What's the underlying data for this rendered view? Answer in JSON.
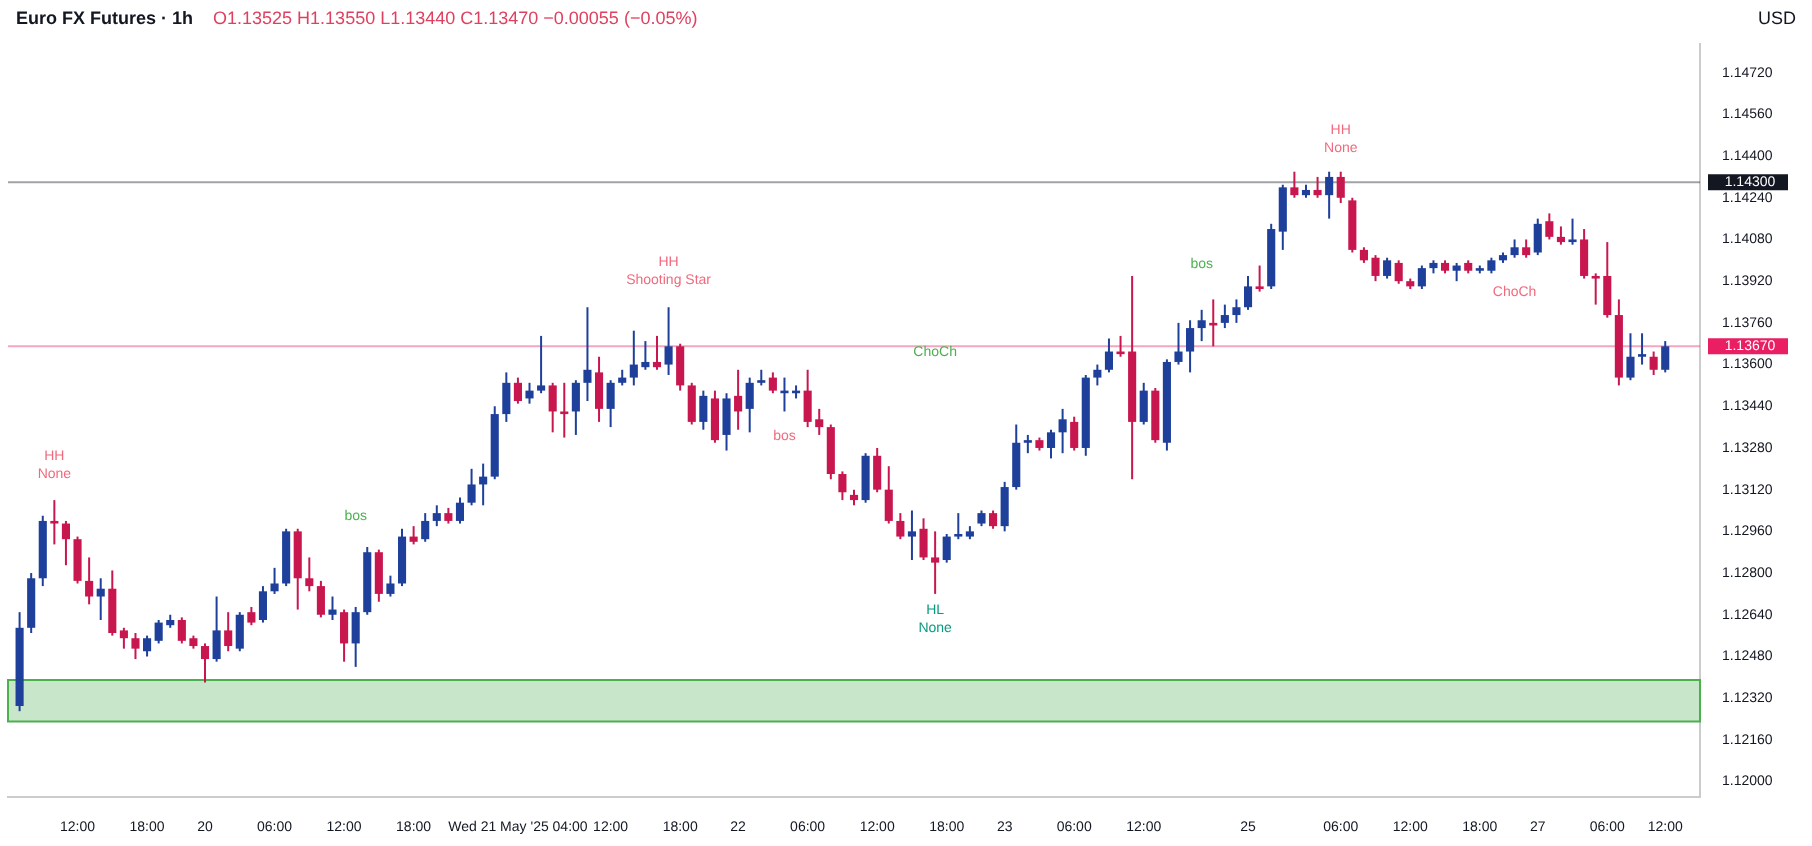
{
  "chart_data": {
    "type": "candlestick",
    "title": "Euro FX Futures · 1h",
    "annotations": [
      "O1.13525 H1.13550 L1.13440 C1.13470 −0.00055 (−0.05%)",
      "USD",
      "HH",
      "None",
      "HH",
      "Shooting Star",
      "HL",
      "None",
      "HH",
      "None",
      "bos",
      "bos",
      "bos",
      "ChoCh",
      "ChoCh"
    ],
    "categories": [
      null,
      null,
      null,
      null,
      null,
      "12:00",
      null,
      null,
      null,
      null,
      null,
      "18:00",
      null,
      null,
      null,
      null,
      "20",
      null,
      null,
      null,
      null,
      null,
      "06:00",
      null,
      null,
      null,
      null,
      null,
      "12:00",
      null,
      null,
      null,
      null,
      null,
      "18:00",
      null,
      null,
      null,
      null,
      null,
      null,
      null,
      null,
      "Wed 21 May '25 04:00",
      null,
      null,
      null,
      null,
      null,
      null,
      null,
      "12:00",
      null,
      null,
      null,
      null,
      null,
      "18:00",
      null,
      null,
      null,
      null,
      "22",
      null,
      null,
      null,
      null,
      null,
      "06:00",
      null,
      null,
      null,
      null,
      null,
      "12:00",
      null,
      null,
      null,
      null,
      null,
      "18:00",
      null,
      null,
      null,
      null,
      "23",
      null,
      null,
      null,
      null,
      null,
      "06:00",
      null,
      null,
      null,
      null,
      null,
      "12:00",
      null,
      null,
      null,
      null,
      null,
      null,
      null,
      null,
      "25",
      null,
      null,
      null,
      null,
      null,
      null,
      null,
      "06:00",
      null,
      null,
      null,
      null,
      null,
      "12:00",
      null,
      null,
      null,
      null,
      null,
      "18:00",
      null,
      null,
      null,
      null,
      "27",
      null,
      null,
      null,
      null,
      null,
      "06:00",
      null,
      null,
      null,
      null,
      "12:00"
    ],
    "ohlc": [
      [
        1.1229,
        1.1265,
        1.1227,
        1.1259
      ],
      [
        1.1259,
        1.128,
        1.1257,
        1.1278
      ],
      [
        1.1278,
        1.1302,
        1.1275,
        1.13
      ],
      [
        1.13,
        1.1308,
        1.1291,
        1.1299
      ],
      [
        1.1299,
        1.13,
        1.1283,
        1.1293
      ],
      [
        1.1293,
        1.1294,
        1.1276,
        1.1277
      ],
      [
        1.1277,
        1.1286,
        1.1268,
        1.1271
      ],
      [
        1.1271,
        1.1278,
        1.1262,
        1.1274
      ],
      [
        1.1274,
        1.1281,
        1.1256,
        1.1257
      ],
      [
        1.1258,
        1.1259,
        1.1251,
        1.1255
      ],
      [
        1.1255,
        1.1257,
        1.1247,
        1.1251
      ],
      [
        1.125,
        1.1256,
        1.1248,
        1.1255
      ],
      [
        1.1254,
        1.1262,
        1.1253,
        1.1261
      ],
      [
        1.126,
        1.1264,
        1.1259,
        1.1262
      ],
      [
        1.1262,
        1.1263,
        1.1253,
        1.1254
      ],
      [
        1.1255,
        1.1256,
        1.1251,
        1.1252
      ],
      [
        1.1252,
        1.1253,
        1.1238,
        1.1247
      ],
      [
        1.1247,
        1.1271,
        1.1246,
        1.1258
      ],
      [
        1.1258,
        1.1265,
        1.125,
        1.1252
      ],
      [
        1.1251,
        1.1265,
        1.125,
        1.1264
      ],
      [
        1.1265,
        1.1267,
        1.126,
        1.1261
      ],
      [
        1.1262,
        1.1275,
        1.1261,
        1.1273
      ],
      [
        1.1273,
        1.1282,
        1.1272,
        1.1276
      ],
      [
        1.1276,
        1.1297,
        1.1275,
        1.1296
      ],
      [
        1.1296,
        1.1297,
        1.1266,
        1.1278
      ],
      [
        1.1278,
        1.1286,
        1.1273,
        1.1275
      ],
      [
        1.1275,
        1.1277,
        1.1263,
        1.1264
      ],
      [
        1.1264,
        1.1271,
        1.1262,
        1.1266
      ],
      [
        1.1265,
        1.1266,
        1.1246,
        1.1253
      ],
      [
        1.1253,
        1.1267,
        1.1244,
        1.1265
      ],
      [
        1.1265,
        1.129,
        1.1264,
        1.1288
      ],
      [
        1.1288,
        1.1289,
        1.1269,
        1.1272
      ],
      [
        1.1272,
        1.1279,
        1.1271,
        1.1276
      ],
      [
        1.1276,
        1.1297,
        1.1275,
        1.1294
      ],
      [
        1.1294,
        1.1298,
        1.1291,
        1.1292
      ],
      [
        1.1293,
        1.1303,
        1.1292,
        1.13
      ],
      [
        1.13,
        1.1306,
        1.1298,
        1.1303
      ],
      [
        1.1303,
        1.1305,
        1.1299,
        1.13
      ],
      [
        1.13,
        1.1309,
        1.1299,
        1.1307
      ],
      [
        1.1307,
        1.132,
        1.1306,
        1.1314
      ],
      [
        1.1314,
        1.1322,
        1.1306,
        1.1317
      ],
      [
        1.1317,
        1.1344,
        1.1316,
        1.1341
      ],
      [
        1.1341,
        1.1357,
        1.1338,
        1.1353
      ],
      [
        1.1353,
        1.1355,
        1.1345,
        1.1346
      ],
      [
        1.1347,
        1.1353,
        1.1345,
        1.135
      ],
      [
        1.135,
        1.1371,
        1.1349,
        1.1352
      ],
      [
        1.1352,
        1.1353,
        1.1334,
        1.1342
      ],
      [
        1.1342,
        1.1353,
        1.1332,
        1.1341
      ],
      [
        1.1342,
        1.1354,
        1.1333,
        1.1353
      ],
      [
        1.1353,
        1.1382,
        1.1346,
        1.1358
      ],
      [
        1.1357,
        1.1363,
        1.1338,
        1.1343
      ],
      [
        1.1343,
        1.1354,
        1.1336,
        1.1353
      ],
      [
        1.1353,
        1.1358,
        1.1352,
        1.1355
      ],
      [
        1.1355,
        1.1373,
        1.1352,
        1.136
      ],
      [
        1.1359,
        1.1369,
        1.1358,
        1.1361
      ],
      [
        1.1361,
        1.1371,
        1.1358,
        1.1359
      ],
      [
        1.136,
        1.1382,
        1.1356,
        1.1367
      ],
      [
        1.1367,
        1.1368,
        1.135,
        1.1352
      ],
      [
        1.1352,
        1.1353,
        1.1337,
        1.1338
      ],
      [
        1.1338,
        1.135,
        1.1335,
        1.1348
      ],
      [
        1.1347,
        1.135,
        1.133,
        1.1331
      ],
      [
        1.1333,
        1.1349,
        1.1327,
        1.1347
      ],
      [
        1.1348,
        1.1358,
        1.1335,
        1.1342
      ],
      [
        1.1343,
        1.1355,
        1.1334,
        1.1353
      ],
      [
        1.1353,
        1.1358,
        1.1352,
        1.1354
      ],
      [
        1.1355,
        1.1357,
        1.1349,
        1.135
      ],
      [
        1.1349,
        1.1355,
        1.1342,
        1.135
      ],
      [
        1.1349,
        1.1352,
        1.1347,
        1.135
      ],
      [
        1.135,
        1.1358,
        1.1336,
        1.1338
      ],
      [
        1.1339,
        1.1343,
        1.1333,
        1.1336
      ],
      [
        1.1336,
        1.1337,
        1.1316,
        1.1318
      ],
      [
        1.1318,
        1.1319,
        1.1308,
        1.1311
      ],
      [
        1.131,
        1.1312,
        1.1306,
        1.1308
      ],
      [
        1.1308,
        1.1326,
        1.1307,
        1.1325
      ],
      [
        1.1325,
        1.1328,
        1.1311,
        1.1312
      ],
      [
        1.1312,
        1.1321,
        1.1299,
        1.13
      ],
      [
        1.13,
        1.1303,
        1.1293,
        1.1294
      ],
      [
        1.1294,
        1.1304,
        1.1285,
        1.1296
      ],
      [
        1.1297,
        1.1301,
        1.1285,
        1.1286
      ],
      [
        1.1286,
        1.1296,
        1.1272,
        1.1284
      ],
      [
        1.1285,
        1.1295,
        1.1284,
        1.1294
      ],
      [
        1.1294,
        1.1303,
        1.1293,
        1.1295
      ],
      [
        1.1294,
        1.1298,
        1.1293,
        1.1296
      ],
      [
        1.1299,
        1.1304,
        1.1298,
        1.1303
      ],
      [
        1.1303,
        1.1304,
        1.1297,
        1.1298
      ],
      [
        1.1298,
        1.1315,
        1.1296,
        1.1313
      ],
      [
        1.1313,
        1.1337,
        1.1312,
        1.133
      ],
      [
        1.133,
        1.1333,
        1.1326,
        1.1331
      ],
      [
        1.1331,
        1.1332,
        1.1327,
        1.1328
      ],
      [
        1.1328,
        1.1335,
        1.1324,
        1.1334
      ],
      [
        1.1334,
        1.1343,
        1.1326,
        1.1339
      ],
      [
        1.1338,
        1.134,
        1.1327,
        1.1328
      ],
      [
        1.1328,
        1.1356,
        1.1325,
        1.1355
      ],
      [
        1.1355,
        1.136,
        1.1352,
        1.1358
      ],
      [
        1.1358,
        1.137,
        1.1357,
        1.1365
      ],
      [
        1.1365,
        1.1371,
        1.1363,
        1.1364
      ],
      [
        1.1365,
        1.1394,
        1.1316,
        1.1338
      ],
      [
        1.1338,
        1.1353,
        1.1337,
        1.135
      ],
      [
        1.135,
        1.1351,
        1.133,
        1.1331
      ],
      [
        1.133,
        1.1362,
        1.1327,
        1.1361
      ],
      [
        1.1361,
        1.1376,
        1.136,
        1.1365
      ],
      [
        1.1365,
        1.1377,
        1.1357,
        1.1374
      ],
      [
        1.1374,
        1.1381,
        1.1369,
        1.1377
      ],
      [
        1.1376,
        1.1385,
        1.1367,
        1.1375
      ],
      [
        1.1376,
        1.1383,
        1.1374,
        1.1379
      ],
      [
        1.1379,
        1.1385,
        1.1376,
        1.1382
      ],
      [
        1.1382,
        1.1394,
        1.1381,
        1.139
      ],
      [
        1.139,
        1.1398,
        1.1388,
        1.1389
      ],
      [
        1.139,
        1.1414,
        1.1389,
        1.1412
      ],
      [
        1.1411,
        1.1429,
        1.1404,
        1.1428
      ],
      [
        1.1428,
        1.1434,
        1.1424,
        1.1425
      ],
      [
        1.1425,
        1.1429,
        1.1424,
        1.1427
      ],
      [
        1.1427,
        1.1432,
        1.1424,
        1.1425
      ],
      [
        1.1425,
        1.1434,
        1.1416,
        1.1432
      ],
      [
        1.1432,
        1.1434,
        1.1422,
        1.1424
      ],
      [
        1.1423,
        1.1424,
        1.1403,
        1.1404
      ],
      [
        1.1404,
        1.1405,
        1.1399,
        1.14
      ],
      [
        1.1401,
        1.1402,
        1.1392,
        1.1394
      ],
      [
        1.1394,
        1.1401,
        1.1393,
        1.14
      ],
      [
        1.1399,
        1.14,
        1.1391,
        1.1392
      ],
      [
        1.1392,
        1.1393,
        1.1389,
        1.139
      ],
      [
        1.139,
        1.1398,
        1.1389,
        1.1397
      ],
      [
        1.1397,
        1.14,
        1.1395,
        1.1399
      ],
      [
        1.1399,
        1.14,
        1.1395,
        1.1396
      ],
      [
        1.1396,
        1.1399,
        1.1392,
        1.1398
      ],
      [
        1.1399,
        1.14,
        1.1395,
        1.1396
      ],
      [
        1.1396,
        1.1398,
        1.1395,
        1.1397
      ],
      [
        1.1396,
        1.1401,
        1.1395,
        1.14
      ],
      [
        1.14,
        1.1403,
        1.1399,
        1.1402
      ],
      [
        1.1402,
        1.1408,
        1.1401,
        1.1405
      ],
      [
        1.1405,
        1.1408,
        1.1401,
        1.1402
      ],
      [
        1.1403,
        1.1416,
        1.1402,
        1.1414
      ],
      [
        1.1415,
        1.1418,
        1.1408,
        1.1409
      ],
      [
        1.1409,
        1.1413,
        1.1406,
        1.1407
      ],
      [
        1.1407,
        1.1416,
        1.1406,
        1.1408
      ],
      [
        1.1408,
        1.1412,
        1.1393,
        1.1394
      ],
      [
        1.1394,
        1.1395,
        1.1383,
        1.1393
      ],
      [
        1.1394,
        1.1407,
        1.1378,
        1.1379
      ],
      [
        1.1379,
        1.1385,
        1.1352,
        1.1355
      ],
      [
        1.1355,
        1.1372,
        1.1354,
        1.1363
      ],
      [
        1.1363,
        1.1372,
        1.136,
        1.1364
      ],
      [
        1.1363,
        1.1365,
        1.1356,
        1.1358
      ],
      [
        1.1358,
        1.1369,
        1.1357,
        1.1367
      ]
    ],
    "ylim": [
      1.1194,
      1.1483
    ],
    "yticks": [
      {
        "value": 1.12,
        "label": "1.12000"
      },
      {
        "value": 1.1216,
        "label": "1.12160"
      },
      {
        "value": 1.1232,
        "label": "1.12320"
      },
      {
        "value": 1.1248,
        "label": "1.12480"
      },
      {
        "value": 1.1264,
        "label": "1.12640"
      },
      {
        "value": 1.128,
        "label": "1.12800"
      },
      {
        "value": 1.1296,
        "label": "1.12960"
      },
      {
        "value": 1.1312,
        "label": "1.13120"
      },
      {
        "value": 1.1328,
        "label": "1.13280"
      },
      {
        "value": 1.1344,
        "label": "1.13440"
      },
      {
        "value": 1.136,
        "label": "1.13600"
      },
      {
        "value": 1.1376,
        "label": "1.13760"
      },
      {
        "value": 1.1392,
        "label": "1.13920"
      },
      {
        "value": 1.1408,
        "label": "1.14080"
      },
      {
        "value": 1.1424,
        "label": "1.14240"
      },
      {
        "value": 1.144,
        "label": "1.14400"
      },
      {
        "value": 1.1456,
        "label": "1.14560"
      },
      {
        "value": 1.1472,
        "label": "1.14720"
      }
    ],
    "ref_lines": [
      {
        "axis": "y",
        "value": 1.143,
        "label": "1.14300",
        "color": "#131722"
      },
      {
        "axis": "y",
        "value": 1.1367,
        "label": "1.13670",
        "color": "#e91e63"
      }
    ],
    "bands": [
      {
        "axis": "y",
        "from": 1.1223,
        "to": 1.1239,
        "color": "#c8e6c9"
      }
    ]
  }
}
